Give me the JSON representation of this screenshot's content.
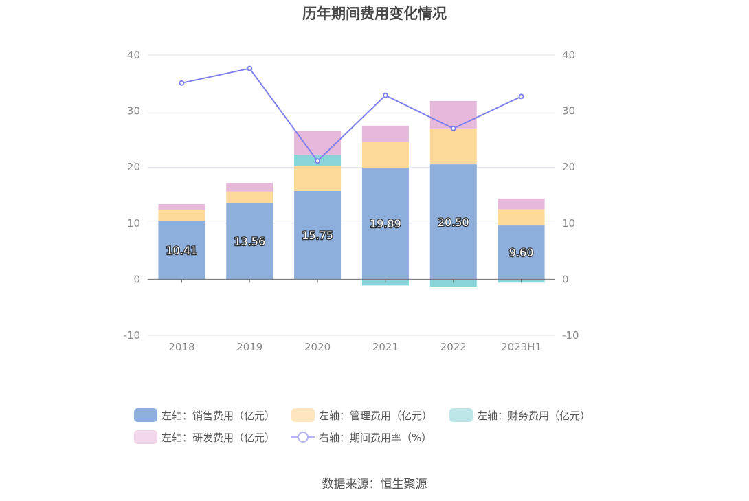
{
  "chart_data": {
    "type": "bar",
    "title": "历年期间费用变化情况",
    "categories": [
      "2018",
      "2019",
      "2020",
      "2021",
      "2022",
      "2023H1"
    ],
    "stacked": true,
    "left_axis": {
      "ylim": [
        -10,
        40
      ],
      "ticks": [
        "-10",
        "0",
        "10",
        "20",
        "30",
        "40"
      ]
    },
    "right_axis": {
      "ylim": [
        -10,
        40
      ],
      "ticks": [
        "-10",
        "0",
        "10",
        "20",
        "30",
        "40"
      ]
    },
    "grid": true,
    "legend_position": "bottom",
    "series": [
      {
        "name": "左轴：销售费用（亿元）",
        "type": "bar",
        "axis": "left",
        "color": "#8eaedb",
        "values": [
          10.41,
          13.56,
          15.75,
          19.89,
          20.5,
          9.6
        ],
        "labels": [
          "10.41",
          "13.56",
          "15.75",
          "19.89",
          "20.50",
          "9.60"
        ]
      },
      {
        "name": "左轴：管理费用（亿元）",
        "type": "bar",
        "axis": "left",
        "color": "#ffd999",
        "values": [
          1.9,
          2.1,
          4.4,
          4.6,
          6.4,
          2.9
        ]
      },
      {
        "name": "左轴：财务费用（亿元）",
        "type": "bar",
        "axis": "left",
        "color": "#87d4d9",
        "values": [
          -0.1,
          -0.1,
          2.1,
          -1.1,
          -1.3,
          -0.6
        ]
      },
      {
        "name": "左轴：研发费用（亿元）",
        "type": "bar",
        "axis": "left",
        "color": "#e6b9db",
        "values": [
          1.1,
          1.5,
          4.2,
          2.9,
          4.9,
          1.9
        ]
      },
      {
        "name": "右轴：期间费用率（%）",
        "type": "line",
        "axis": "right",
        "color": "#7f7fef",
        "values": [
          35.0,
          37.6,
          21.1,
          32.8,
          26.9,
          32.6
        ]
      }
    ]
  },
  "footer": {
    "source": "数据来源：恒生聚源"
  }
}
